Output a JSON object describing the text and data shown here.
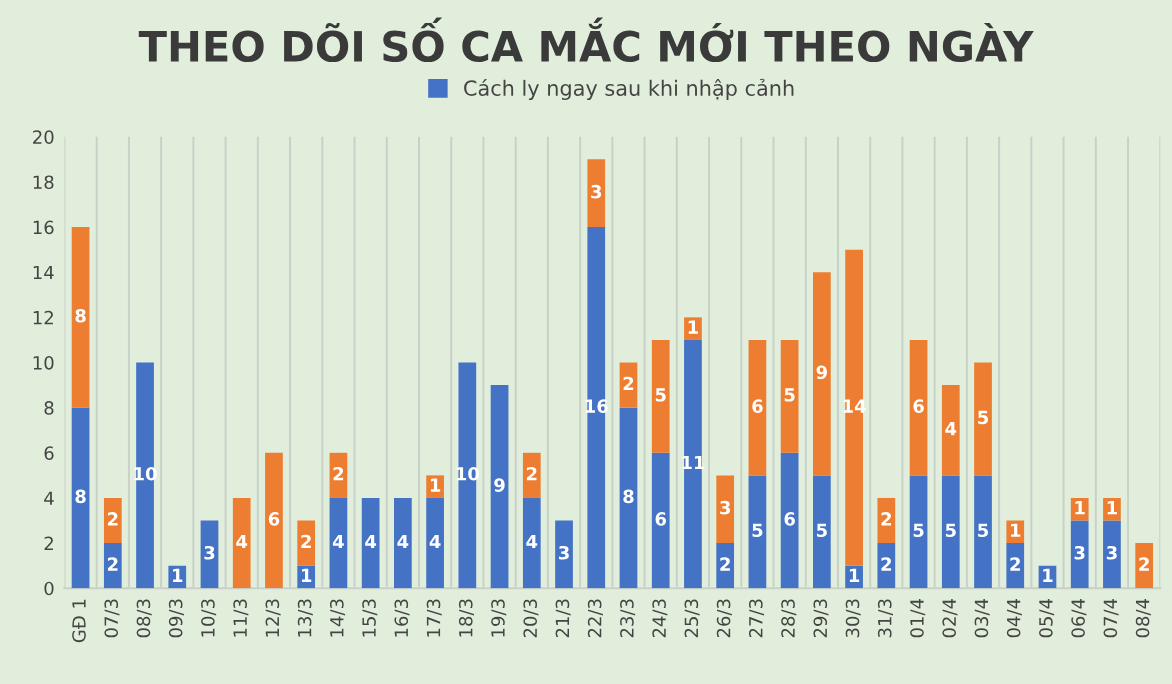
{
  "chart_data": {
    "type": "bar",
    "title": "THEO DÕI SỐ CA MẮC MỚI THEO NGÀY",
    "categories": [
      "GĐ 1",
      "07/3",
      "08/3",
      "09/3",
      "10/3",
      "11/3",
      "12/3",
      "13/3",
      "14/3",
      "15/3",
      "16/3",
      "17/3",
      "18/3",
      "19/3",
      "20/3",
      "21/3",
      "22/3",
      "23/3",
      "24/3",
      "25/3",
      "26/3",
      "27/3",
      "28/3",
      "29/3",
      "30/3",
      "31/3",
      "01/4",
      "02/4",
      "03/4",
      "04/4",
      "05/4",
      "06/4",
      "07/4",
      "08/4"
    ],
    "series": [
      {
        "name": "Cách ly ngay sau khi nhập cảnh",
        "color": "#4472c4",
        "values": [
          8,
          2,
          10,
          1,
          3,
          null,
          null,
          1,
          4,
          4,
          4,
          4,
          10,
          9,
          4,
          3,
          16,
          8,
          6,
          11,
          2,
          5,
          6,
          5,
          1,
          2,
          5,
          5,
          5,
          2,
          1,
          3,
          3,
          null
        ]
      },
      {
        "color": "#ed7d31",
        "values": [
          8,
          2,
          null,
          null,
          null,
          4,
          6,
          2,
          2,
          null,
          null,
          1,
          null,
          null,
          2,
          null,
          3,
          2,
          5,
          1,
          3,
          6,
          5,
          9,
          14,
          2,
          6,
          4,
          5,
          1,
          null,
          1,
          1,
          2
        ]
      }
    ],
    "stacked": true,
    "data_labels": true,
    "ylim": [
      0,
      20
    ],
    "yticks": [
      0,
      2,
      4,
      6,
      8,
      10,
      12,
      14,
      16,
      18,
      20
    ],
    "grid": "x",
    "legend": "top"
  }
}
